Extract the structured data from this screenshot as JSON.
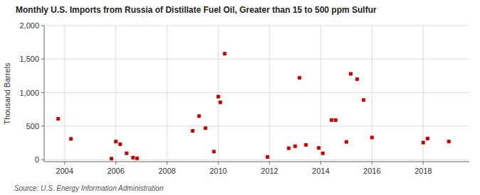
{
  "chart_data": {
    "type": "scatter",
    "title": "Monthly U.S. Imports from Russia of Distillate Fuel Oil, Greater than 15 to 500 ppm Sulfur",
    "ylabel": "Thousand Barrels",
    "source": "Source: U.S. Energy Information Administration",
    "x": [
      2003.75,
      2004.25,
      2005.83,
      2006.0,
      2006.17,
      2006.42,
      2006.67,
      2006.83,
      2009.0,
      2009.25,
      2009.5,
      2009.83,
      2010.0,
      2010.08,
      2010.25,
      2011.92,
      2012.75,
      2013.0,
      2013.17,
      2013.42,
      2013.92,
      2014.08,
      2014.42,
      2014.58,
      2015.0,
      2015.17,
      2015.42,
      2015.67,
      2016.0,
      2018.0,
      2018.17,
      2019.0
    ],
    "values": [
      610,
      310,
      15,
      270,
      230,
      95,
      30,
      20,
      430,
      650,
      470,
      120,
      940,
      855,
      1580,
      40,
      170,
      200,
      1220,
      220,
      175,
      95,
      590,
      590,
      265,
      1280,
      1200,
      890,
      330,
      255,
      315,
      270
    ],
    "color": "#cc0000",
    "marker": "square",
    "xlim": [
      2003.2,
      2019.8
    ],
    "ylim": [
      -30,
      2000
    ],
    "xticks": [
      2004,
      2006,
      2008,
      2010,
      2012,
      2014,
      2016,
      2018
    ],
    "yticks": [
      0,
      500,
      {
        "value": 1000,
        "label": "1,000"
      },
      {
        "value": 1500,
        "label": "1,500"
      },
      {
        "value": 2000,
        "label": "2,000"
      }
    ],
    "grid": true
  }
}
